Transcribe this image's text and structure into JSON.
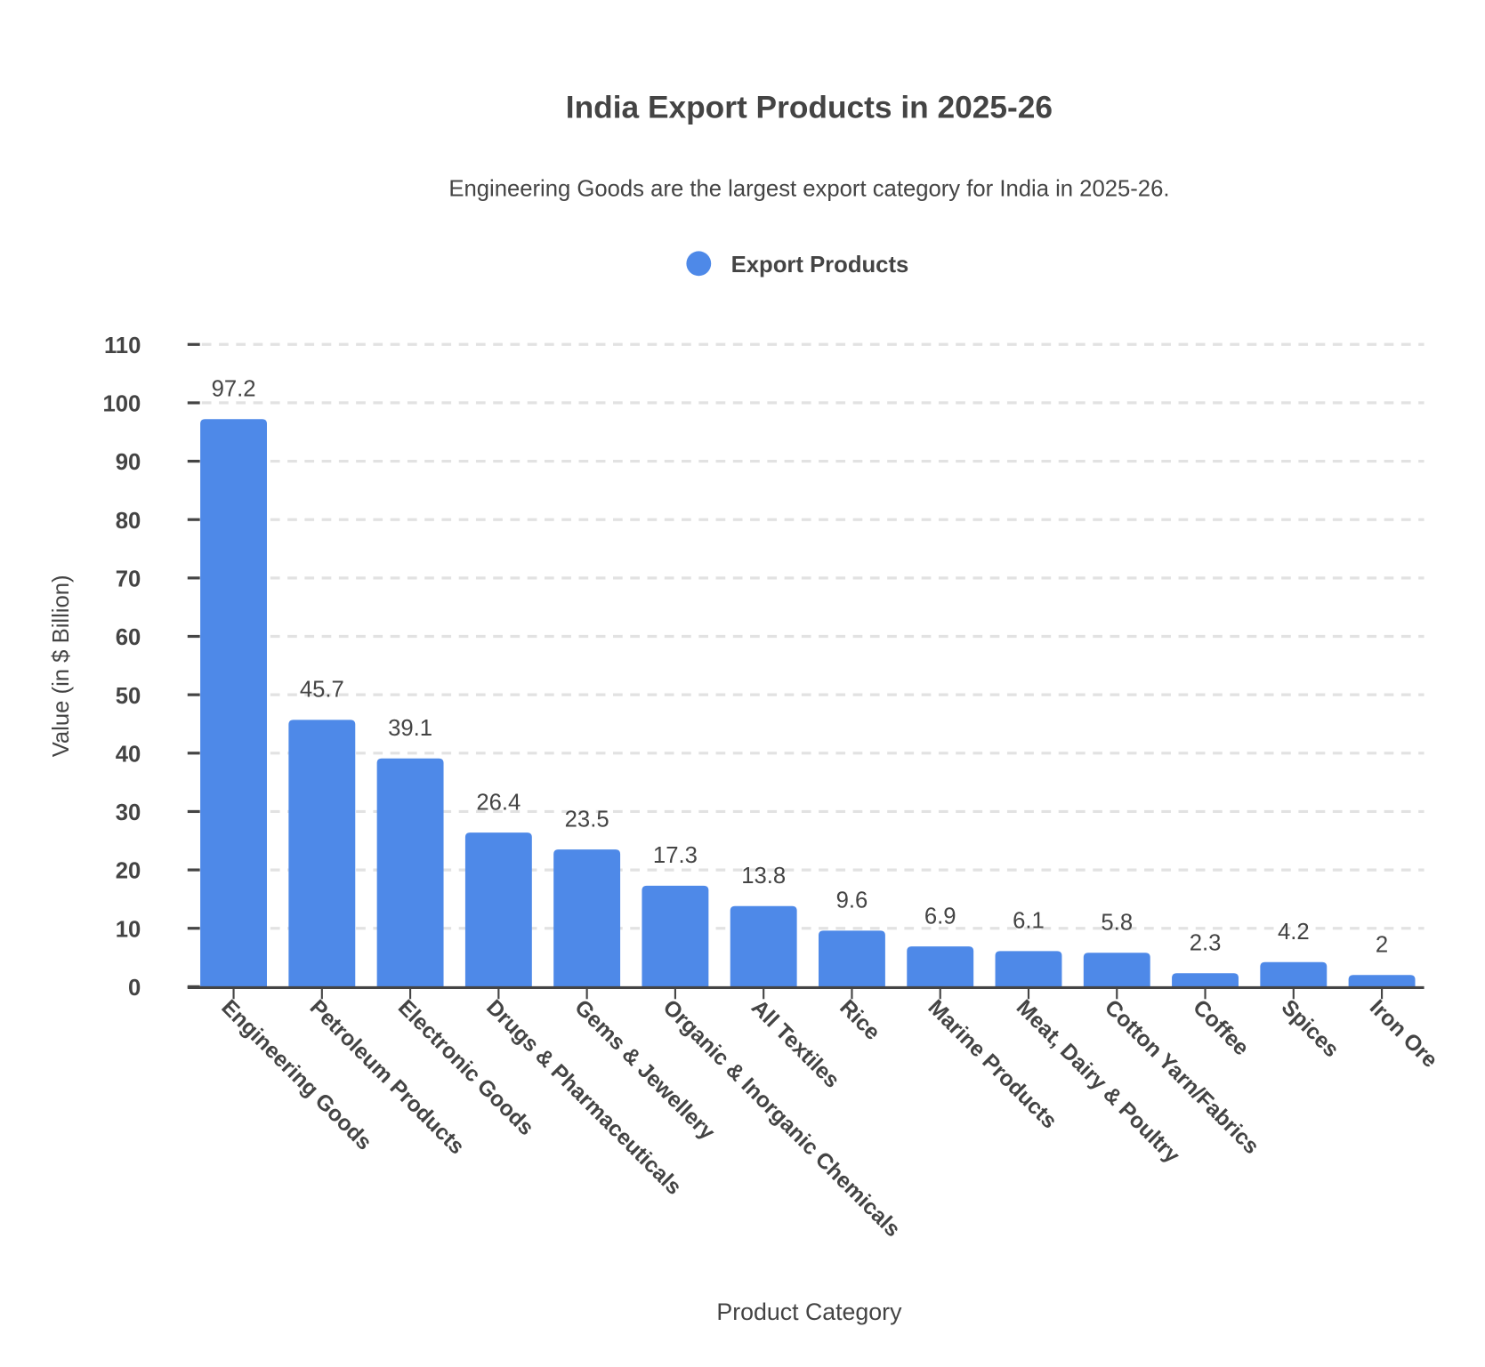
{
  "chart_data": {
    "type": "bar",
    "title": "India Export Products in 2025-26",
    "subtitle": "Engineering Goods are the largest export category for India in 2025-26.",
    "legend": {
      "position": "top",
      "entries": [
        "Export Products"
      ]
    },
    "xlabel": "Product Category",
    "ylabel": "Value (in $ Billion)",
    "ylim": [
      0,
      110
    ],
    "yticks": [
      0,
      10,
      20,
      30,
      40,
      50,
      60,
      70,
      80,
      90,
      100,
      110
    ],
    "grid": true,
    "bar_color": "#4e89e8",
    "categories": [
      "Engineering Goods",
      "Petroleum Products",
      "Electronic Goods",
      "Drugs & Pharmaceuticals",
      "Gems & Jewellery",
      "Organic & Inorganic Chemicals",
      "All Textiles",
      "Rice",
      "Marine Products",
      "Meat, Dairy & Poultry",
      "Cotton Yarn/Fabrics",
      "Coffee",
      "Spices",
      "Iron Ore"
    ],
    "series": [
      {
        "name": "Export Products",
        "values": [
          97.2,
          45.7,
          39.1,
          26.4,
          23.5,
          17.3,
          13.8,
          9.6,
          6.9,
          6.1,
          5.8,
          2.3,
          4.2,
          2
        ]
      }
    ]
  }
}
